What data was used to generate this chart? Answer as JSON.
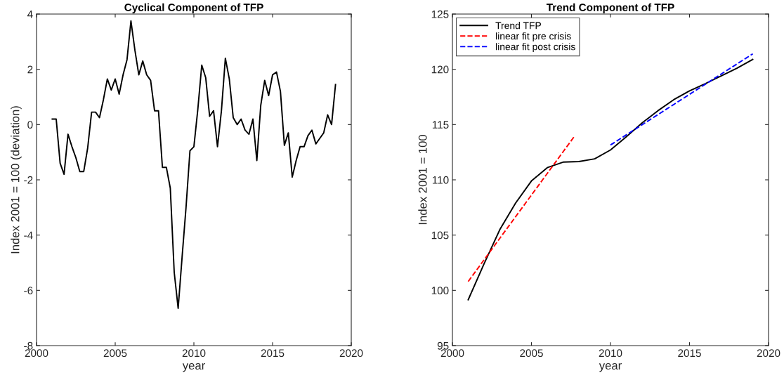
{
  "chart_data": [
    {
      "type": "line",
      "title": "Cyclical Component of TFP",
      "xlabel": "year",
      "ylabel": "Index 2001 = 100 (deviation)",
      "xlim": [
        2000,
        2020
      ],
      "xticks": [
        2000,
        2005,
        2010,
        2015,
        2020
      ],
      "ylim": [
        -8,
        4
      ],
      "yticks": [
        -8,
        -6,
        -4,
        -2,
        0,
        2,
        4
      ],
      "grid": false,
      "legend": false,
      "series": [
        {
          "color": "#000000",
          "line_style": "solid",
          "x": [
            2001.0,
            2001.25,
            2001.5,
            2001.75,
            2002.0,
            2002.25,
            2002.5,
            2002.75,
            2003.0,
            2003.25,
            2003.5,
            2003.75,
            2004.0,
            2004.25,
            2004.5,
            2004.75,
            2005.0,
            2005.25,
            2005.5,
            2005.75,
            2006.0,
            2006.25,
            2006.5,
            2006.75,
            2007.0,
            2007.25,
            2007.5,
            2007.75,
            2008.0,
            2008.25,
            2008.5,
            2008.75,
            2009.0,
            2009.25,
            2009.5,
            2009.75,
            2010.0,
            2010.25,
            2010.5,
            2010.75,
            2011.0,
            2011.25,
            2011.5,
            2011.75,
            2012.0,
            2012.25,
            2012.5,
            2012.75,
            2013.0,
            2013.25,
            2013.5,
            2013.75,
            2014.0,
            2014.25,
            2014.5,
            2014.75,
            2015.0,
            2015.25,
            2015.5,
            2015.75,
            2016.0,
            2016.25,
            2016.5,
            2016.75,
            2017.0,
            2017.25,
            2017.5,
            2017.75,
            2018.0,
            2018.25,
            2018.5,
            2018.75,
            2019.0
          ],
          "values": [
            0.2,
            0.2,
            -1.4,
            -1.8,
            -0.35,
            -0.8,
            -1.2,
            -1.7,
            -1.7,
            -0.85,
            0.45,
            0.45,
            0.25,
            0.9,
            1.65,
            1.25,
            1.65,
            1.1,
            1.8,
            2.35,
            3.75,
            2.7,
            1.8,
            2.3,
            1.8,
            1.6,
            0.5,
            0.5,
            -1.55,
            -1.55,
            -2.3,
            -5.35,
            -6.65,
            -4.8,
            -3.0,
            -0.95,
            -0.8,
            0.55,
            2.15,
            1.7,
            0.3,
            0.5,
            -0.8,
            0.5,
            2.4,
            1.65,
            0.25,
            0.0,
            0.2,
            -0.2,
            -0.35,
            0.2,
            -1.3,
            0.7,
            1.6,
            1.05,
            1.8,
            1.9,
            1.2,
            -0.75,
            -0.3,
            -1.9,
            -1.3,
            -0.8,
            -0.8,
            -0.4,
            -0.2,
            -0.7,
            -0.5,
            -0.3,
            0.35,
            0.0,
            1.45
          ]
        }
      ]
    },
    {
      "type": "line",
      "title": "Trend Component of TFP",
      "xlabel": "year",
      "ylabel": "Index 2001 = 100",
      "xlim": [
        2000,
        2020
      ],
      "xticks": [
        2000,
        2005,
        2010,
        2015,
        2020
      ],
      "ylim": [
        95,
        125
      ],
      "yticks": [
        95,
        100,
        105,
        110,
        115,
        120,
        125
      ],
      "grid": false,
      "legend": "top left",
      "series": [
        {
          "name": "Trend TFP",
          "color": "#000000",
          "line_style": "solid",
          "x": [
            2001,
            2002,
            2003,
            2004,
            2005,
            2006,
            2007,
            2008,
            2009,
            2010,
            2011,
            2012,
            2013,
            2014,
            2015,
            2016,
            2017,
            2018,
            2019
          ],
          "values": [
            99.15,
            102.4,
            105.5,
            107.9,
            109.9,
            111.1,
            111.6,
            111.65,
            111.9,
            112.7,
            113.9,
            115.15,
            116.25,
            117.25,
            118.05,
            118.7,
            119.4,
            120.1,
            120.9
          ]
        },
        {
          "name": "linear fit pre crisis",
          "color": "#ff0000",
          "line_style": "dashed",
          "x": [
            2001,
            2007.75
          ],
          "values": [
            100.8,
            114.0
          ]
        },
        {
          "name": "linear fit post crisis",
          "color": "#0000ff",
          "line_style": "dashed",
          "x": [
            2010,
            2019
          ],
          "values": [
            113.15,
            121.4
          ]
        }
      ]
    }
  ]
}
